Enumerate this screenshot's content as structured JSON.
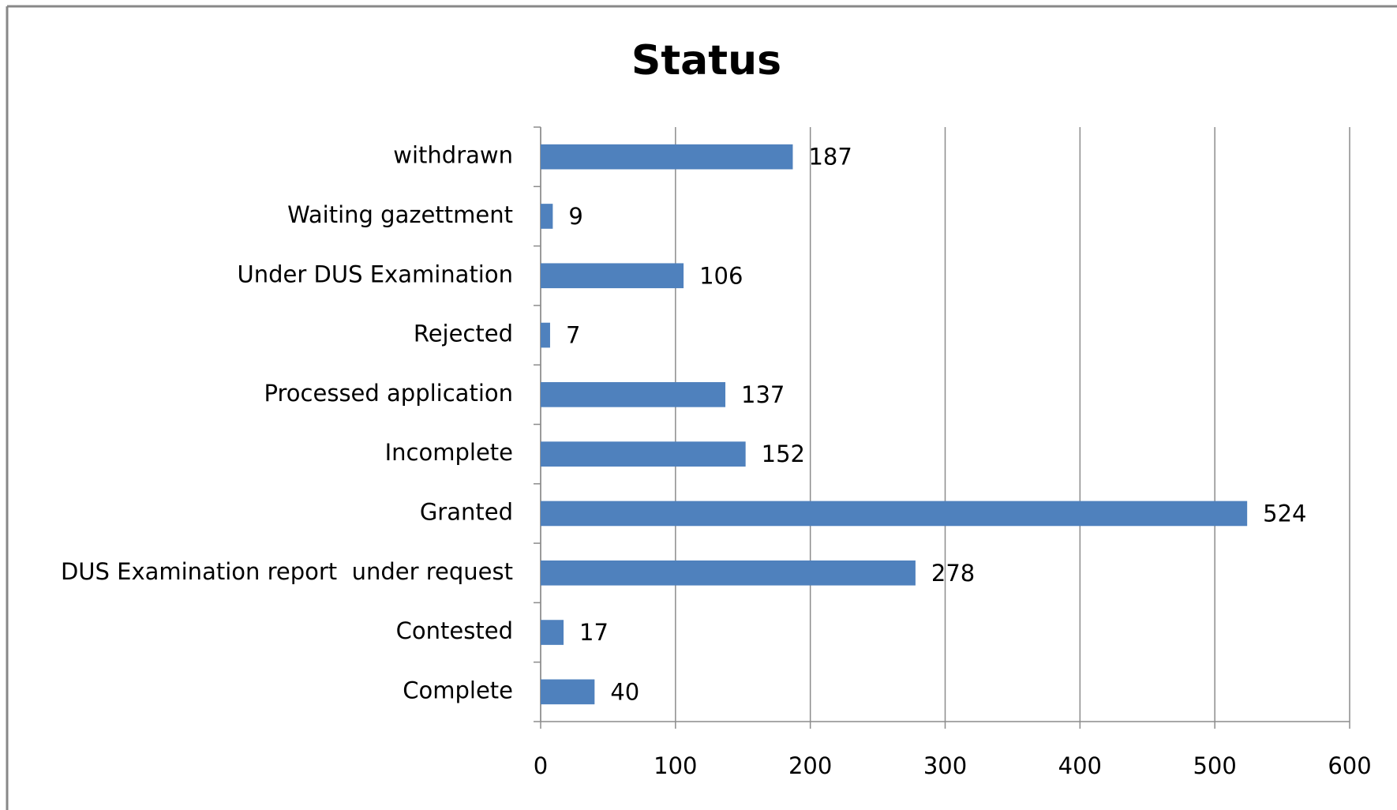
{
  "chart_data": {
    "type": "bar",
    "orientation": "horizontal",
    "title": "Status",
    "categories": [
      "withdrawn",
      "Waiting gazettment",
      "Under DUS Examination",
      "Rejected",
      "Processed application",
      "Incomplete",
      "Granted",
      "DUS Examination report  under request",
      "Contested",
      "Complete"
    ],
    "values": [
      187,
      9,
      106,
      7,
      137,
      152,
      524,
      278,
      17,
      40
    ],
    "color": "#4f81bd",
    "xlim": [
      0,
      600
    ],
    "xticks": [
      0,
      100,
      200,
      300,
      400,
      500,
      600
    ],
    "grid": true
  }
}
